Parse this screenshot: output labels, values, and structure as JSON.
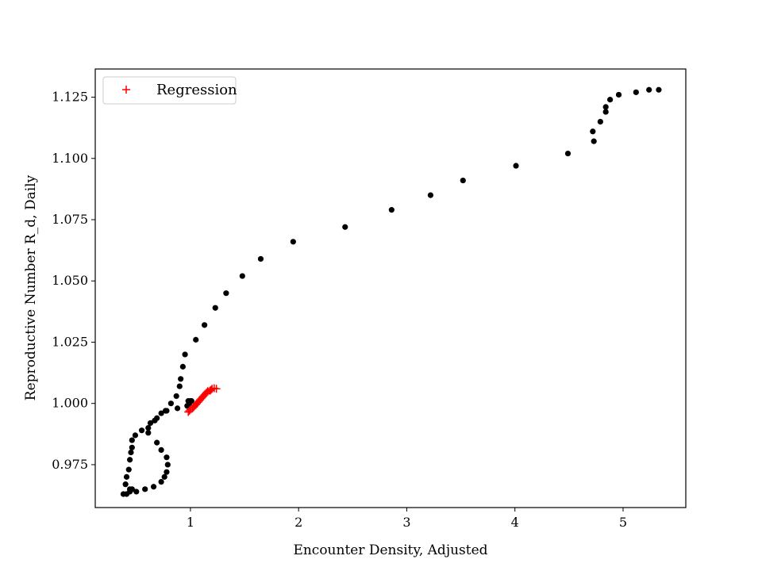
{
  "chart_data": {
    "type": "scatter",
    "xlabel": "Encounter Density, Adjusted",
    "ylabel": "Reproductive Number R_d, Daily",
    "xlim": [
      0.12,
      5.58
    ],
    "ylim": [
      0.9575,
      1.1365
    ],
    "xticks": [
      1,
      2,
      3,
      4,
      5
    ],
    "xtick_labels": [
      "1",
      "2",
      "3",
      "4",
      "5"
    ],
    "yticks": [
      0.975,
      1.0,
      1.025,
      1.05,
      1.075,
      1.1,
      1.125
    ],
    "ytick_labels": [
      "0.975",
      "1.000",
      "1.025",
      "1.050",
      "1.075",
      "1.100",
      "1.125"
    ],
    "grid": false,
    "legend_position": "top-left",
    "series": [
      {
        "marker": "dot",
        "color": "#000000",
        "points": [
          [
            0.38,
            0.963
          ],
          [
            0.41,
            0.963
          ],
          [
            0.44,
            0.964
          ],
          [
            0.4,
            0.967
          ],
          [
            0.41,
            0.97
          ],
          [
            0.43,
            0.973
          ],
          [
            0.44,
            0.977
          ],
          [
            0.45,
            0.98
          ],
          [
            0.46,
            0.982
          ],
          [
            0.46,
            0.985
          ],
          [
            0.49,
            0.987
          ],
          [
            0.55,
            0.989
          ],
          [
            0.61,
            0.99
          ],
          [
            0.63,
            0.992
          ],
          [
            0.69,
            0.994
          ],
          [
            0.73,
            0.996
          ],
          [
            0.77,
            0.997
          ],
          [
            0.82,
            1.0
          ],
          [
            0.87,
            1.003
          ],
          [
            0.9,
            1.007
          ],
          [
            0.91,
            1.01
          ],
          [
            0.93,
            1.015
          ],
          [
            0.95,
            1.02
          ],
          [
            1.05,
            1.026
          ],
          [
            1.13,
            1.032
          ],
          [
            1.23,
            1.039
          ],
          [
            1.33,
            1.045
          ],
          [
            1.48,
            1.052
          ],
          [
            1.65,
            1.059
          ],
          [
            1.95,
            1.066
          ],
          [
            2.43,
            1.072
          ],
          [
            2.86,
            1.079
          ],
          [
            3.22,
            1.085
          ],
          [
            3.52,
            1.091
          ],
          [
            4.01,
            1.097
          ],
          [
            4.49,
            1.102
          ],
          [
            4.73,
            1.107
          ],
          [
            4.72,
            1.111
          ],
          [
            4.79,
            1.115
          ],
          [
            4.84,
            1.119
          ],
          [
            4.84,
            1.121
          ],
          [
            4.88,
            1.124
          ],
          [
            4.96,
            1.126
          ],
          [
            5.12,
            1.127
          ],
          [
            5.24,
            1.128
          ],
          [
            5.33,
            1.128
          ],
          [
            0.61,
            0.988
          ],
          [
            0.69,
            0.984
          ],
          [
            0.73,
            0.981
          ],
          [
            0.78,
            0.978
          ],
          [
            0.79,
            0.975
          ],
          [
            0.78,
            0.972
          ],
          [
            0.76,
            0.97
          ],
          [
            0.73,
            0.968
          ],
          [
            0.66,
            0.966
          ],
          [
            0.58,
            0.965
          ],
          [
            0.5,
            0.964
          ],
          [
            0.46,
            0.965
          ],
          [
            0.44,
            0.965
          ],
          [
            0.67,
            0.993
          ],
          [
            0.78,
            0.997
          ],
          [
            0.88,
            0.998
          ],
          [
            0.97,
            0.999
          ],
          [
            0.99,
            1.0
          ],
          [
            1.0,
            1.001
          ],
          [
            1.01,
            1.001
          ],
          [
            0.98,
            1.001
          ],
          [
            0.98,
            0.999
          ]
        ]
      },
      {
        "name": "Regression",
        "marker": "plus",
        "color": "#ff0000",
        "points": [
          [
            0.98,
            0.9965
          ],
          [
            0.99,
            0.997
          ],
          [
            1.0,
            0.9975
          ],
          [
            1.02,
            0.998
          ],
          [
            1.03,
            0.9985
          ],
          [
            1.04,
            0.999
          ],
          [
            1.05,
            0.9995
          ],
          [
            1.06,
            1.0
          ],
          [
            1.07,
            1.0005
          ],
          [
            1.08,
            1.001
          ],
          [
            1.09,
            1.0015
          ],
          [
            1.1,
            1.002
          ],
          [
            1.11,
            1.0025
          ],
          [
            1.12,
            1.003
          ],
          [
            1.13,
            1.0035
          ],
          [
            1.14,
            1.004
          ],
          [
            1.15,
            1.0045
          ],
          [
            1.16,
            1.005
          ],
          [
            1.18,
            1.0052
          ],
          [
            1.19,
            1.0055
          ],
          [
            1.2,
            1.006
          ],
          [
            1.22,
            1.0062
          ],
          [
            1.24,
            1.006
          ]
        ]
      }
    ]
  }
}
